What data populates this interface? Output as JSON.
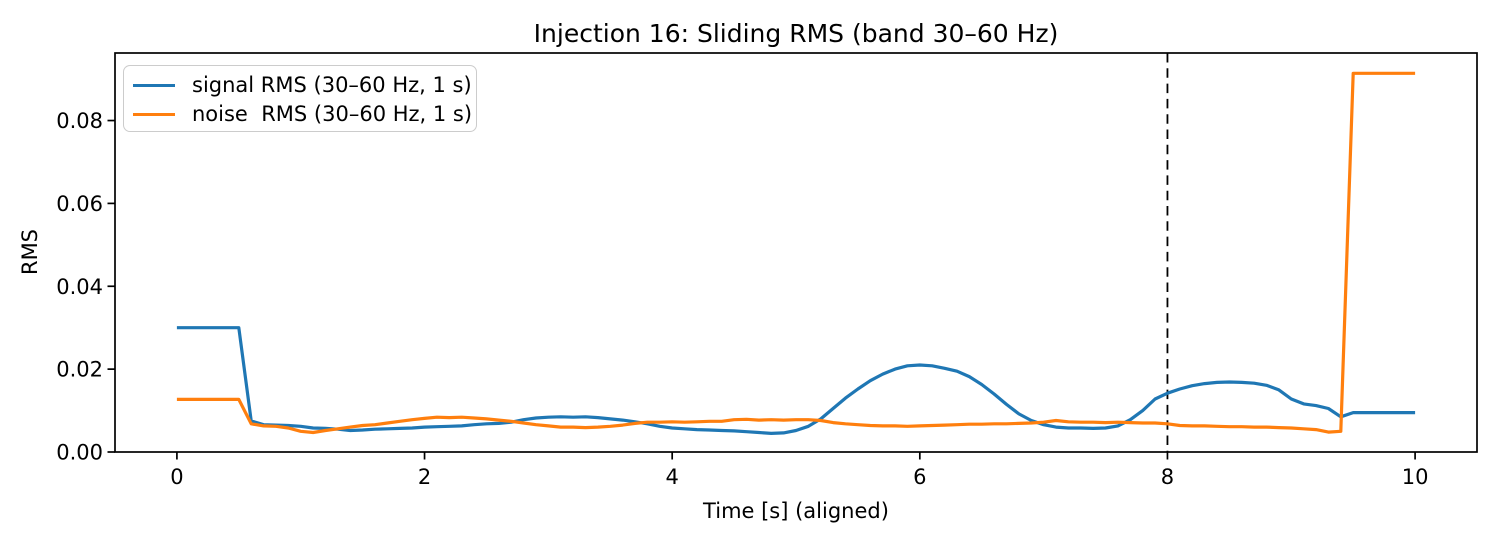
{
  "figure": {
    "title": "Injection 16: Sliding RMS (band 30–60 Hz)",
    "background_color": "#ffffff",
    "frame_color": "#000000",
    "text_color": "#000000"
  },
  "chart_data": {
    "type": "line",
    "title": "Injection 16: Sliding RMS (band 30–60 Hz)",
    "xlabel": "Time [s] (aligned)",
    "ylabel": "RMS",
    "xlim": [
      -0.5,
      10.5
    ],
    "ylim": [
      0,
      0.0963
    ],
    "x_ticks": [
      0,
      2,
      4,
      6,
      8,
      10
    ],
    "x_tick_labels": [
      "0",
      "2",
      "4",
      "6",
      "8",
      "10"
    ],
    "y_ticks": [
      0.0,
      0.02,
      0.04,
      0.06,
      0.08
    ],
    "y_tick_labels": [
      "0.00",
      "0.02",
      "0.04",
      "0.06",
      "0.08"
    ],
    "grid": false,
    "legend_position": "upper left",
    "vline": {
      "x": 8,
      "style": "dashed",
      "color": "#000000"
    },
    "x": [
      0,
      0.1,
      0.2,
      0.3,
      0.4,
      0.5,
      0.6,
      0.7,
      0.8,
      0.9,
      1,
      1.1,
      1.2,
      1.3,
      1.4,
      1.5,
      1.6,
      1.7,
      1.8,
      1.9,
      2,
      2.1,
      2.2,
      2.3,
      2.4,
      2.5,
      2.6,
      2.7,
      2.8,
      2.9,
      3,
      3.1,
      3.2,
      3.3,
      3.4,
      3.5,
      3.6,
      3.7,
      3.8,
      3.9,
      4,
      4.1,
      4.2,
      4.3,
      4.4,
      4.5,
      4.6,
      4.7,
      4.8,
      4.9,
      5,
      5.1,
      5.2,
      5.3,
      5.4,
      5.5,
      5.6,
      5.7,
      5.8,
      5.9,
      6,
      6.1,
      6.2,
      6.3,
      6.4,
      6.5,
      6.6,
      6.7,
      6.8,
      6.9,
      7,
      7.1,
      7.2,
      7.3,
      7.4,
      7.5,
      7.6,
      7.7,
      7.8,
      7.9,
      8,
      8.1,
      8.2,
      8.3,
      8.4,
      8.5,
      8.6,
      8.7,
      8.8,
      8.9,
      9,
      9.1,
      9.2,
      9.3,
      9.4,
      9.5,
      9.6,
      9.7,
      9.8,
      9.9,
      10
    ],
    "series": [
      {
        "name": "signal RMS (30–60 Hz, 1 s)",
        "color": "#1f77b4",
        "values": [
          0.03,
          0.03,
          0.03,
          0.03,
          0.03,
          0.03,
          0.0075,
          0.0066,
          0.0065,
          0.0064,
          0.0062,
          0.0058,
          0.0057,
          0.0055,
          0.0052,
          0.0053,
          0.0055,
          0.0056,
          0.0057,
          0.0058,
          0.006,
          0.0061,
          0.0062,
          0.0063,
          0.0066,
          0.0068,
          0.0069,
          0.0072,
          0.0078,
          0.0082,
          0.0084,
          0.0085,
          0.0084,
          0.0085,
          0.0083,
          0.008,
          0.0077,
          0.0073,
          0.0068,
          0.0062,
          0.0058,
          0.0056,
          0.0054,
          0.0053,
          0.0052,
          0.0051,
          0.0049,
          0.0047,
          0.0045,
          0.0046,
          0.0052,
          0.0062,
          0.008,
          0.0105,
          0.013,
          0.0152,
          0.0172,
          0.0188,
          0.02,
          0.0208,
          0.021,
          0.0208,
          0.0202,
          0.0195,
          0.0182,
          0.0163,
          0.014,
          0.0115,
          0.0092,
          0.0076,
          0.0066,
          0.006,
          0.0058,
          0.0058,
          0.0057,
          0.0058,
          0.0063,
          0.0078,
          0.01,
          0.0128,
          0.0142,
          0.0152,
          0.016,
          0.0165,
          0.0168,
          0.0169,
          0.0168,
          0.0166,
          0.0161,
          0.015,
          0.0128,
          0.0116,
          0.0112,
          0.0105,
          0.0085,
          0.0095,
          0.0095,
          0.0095,
          0.0095,
          0.0095,
          0.0095
        ]
      },
      {
        "name": "noise  RMS (30–60 Hz, 1 s)",
        "color": "#ff7f0e",
        "values": [
          0.0127,
          0.0127,
          0.0127,
          0.0127,
          0.0127,
          0.0127,
          0.0068,
          0.0063,
          0.0062,
          0.0058,
          0.005,
          0.0047,
          0.0052,
          0.0056,
          0.006,
          0.0064,
          0.0066,
          0.007,
          0.0074,
          0.0078,
          0.0081,
          0.0084,
          0.0083,
          0.0084,
          0.0082,
          0.008,
          0.0077,
          0.0074,
          0.007,
          0.0066,
          0.0063,
          0.006,
          0.006,
          0.0059,
          0.006,
          0.0062,
          0.0065,
          0.0069,
          0.0072,
          0.0072,
          0.0073,
          0.0072,
          0.0073,
          0.0074,
          0.0074,
          0.0078,
          0.0079,
          0.0077,
          0.0078,
          0.0077,
          0.0078,
          0.0078,
          0.0076,
          0.0071,
          0.0068,
          0.0066,
          0.0064,
          0.0063,
          0.0063,
          0.0062,
          0.0063,
          0.0064,
          0.0065,
          0.0066,
          0.0067,
          0.0067,
          0.0068,
          0.0068,
          0.0069,
          0.007,
          0.0072,
          0.0076,
          0.0073,
          0.0072,
          0.0072,
          0.0071,
          0.0072,
          0.0071,
          0.007,
          0.007,
          0.0068,
          0.0064,
          0.0063,
          0.0063,
          0.0062,
          0.0061,
          0.0061,
          0.006,
          0.006,
          0.0059,
          0.0058,
          0.0056,
          0.0054,
          0.0048,
          0.005,
          0.0914,
          0.0914,
          0.0914,
          0.0914,
          0.0914,
          0.0914
        ]
      }
    ]
  }
}
